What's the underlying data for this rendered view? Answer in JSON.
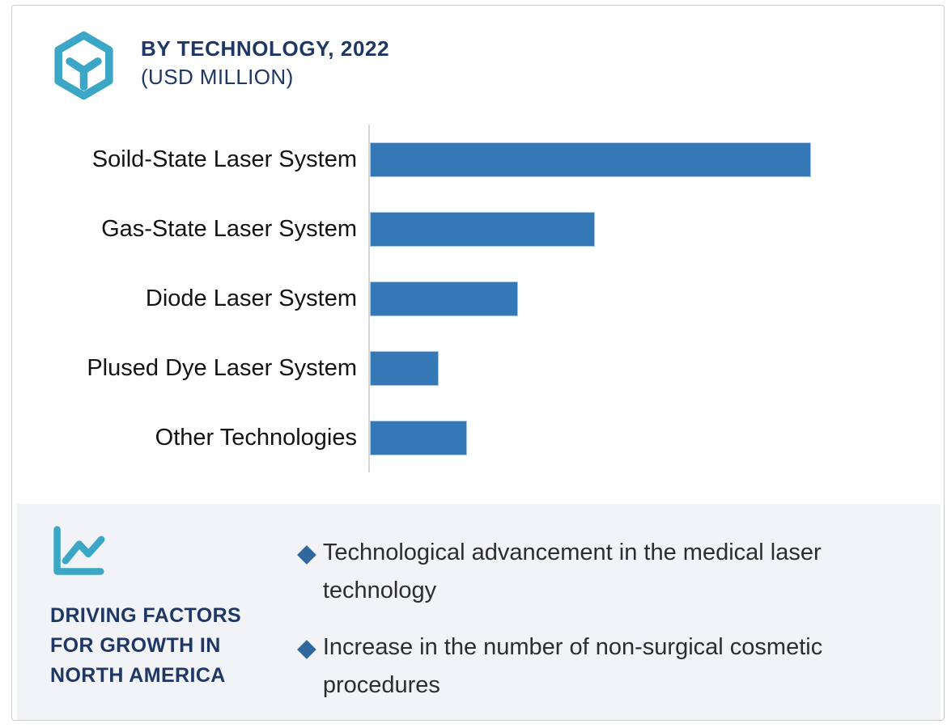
{
  "header": {
    "title": "BY TECHNOLOGY, 2022",
    "subtitle": "(USD MILLION)",
    "logo_icon": "hexagon-cube-icon"
  },
  "colors": {
    "bar": "#3478b6",
    "bar_outline": "#a5c7e5",
    "navy": "#1e3765",
    "teal": "#3ba6c6",
    "panel_bg": "#f2f3f7",
    "diamond": "#30689e",
    "axis_line": "#d8d8d8",
    "text": "#2d2d2d",
    "card_border": "#c9c9c9",
    "label": "#141414"
  },
  "chart_data": {
    "type": "bar",
    "orientation": "horizontal",
    "title": "BY TECHNOLOGY, 2022 (USD MILLION)",
    "categories": [
      "Soild-State Laser System",
      "Gas-State Laser System",
      "Diode Laser System",
      "Plused Dye Laser System",
      "Other Technologies"
    ],
    "values": [
      100,
      51,
      33.5,
      15.5,
      22
    ],
    "value_note": "relative units estimated from bar lengths; no numeric axis or data labels are shown in the image",
    "xlim": [
      0,
      130
    ],
    "xlabel": "",
    "ylabel": "",
    "grid": false,
    "legend": false,
    "bar_color": "#3478b6"
  },
  "factors": {
    "icon": "line-chart-icon",
    "heading_lines": [
      "DRIVING FACTORS",
      "FOR GROWTH IN",
      "NORTH AMERICA"
    ],
    "bullet_char": "◆",
    "items": [
      "Technological advancement in the medical laser technology",
      "Increase in the number of non-surgical cosmetic procedures"
    ]
  }
}
